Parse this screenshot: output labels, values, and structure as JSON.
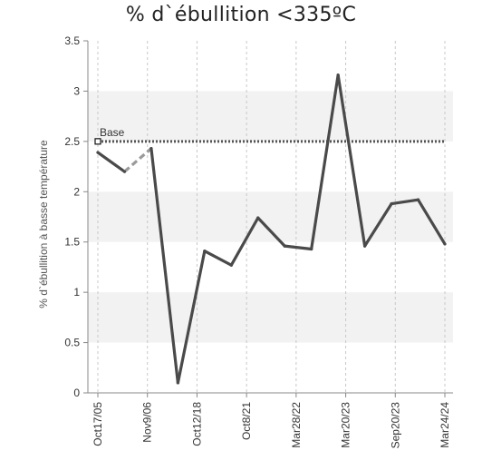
{
  "chart_data": {
    "type": "line",
    "title": "% d`ébullition <335ºC",
    "ylabel": "% d`ébullition à basse température",
    "xlabel": "",
    "ylim": [
      0,
      3.5
    ],
    "yticks": [
      "0",
      "0.5",
      "1",
      "1.5",
      "2",
      "2.5",
      "3",
      "3.5"
    ],
    "x_tick_labels": [
      "Oct17/05",
      "Nov9/06",
      "Oct12/18",
      "Oct8/21",
      "Mar28/22",
      "Mar20/23",
      "Sep20/23",
      "Mar24/24"
    ],
    "grid": "vertical dashed lines, alternating shaded horizontal bands",
    "series": [
      {
        "values": [
          2.39,
          2.2,
          2.43,
          0.1,
          1.41,
          1.27,
          1.74,
          1.46,
          1.43,
          3.16,
          1.46,
          1.88,
          1.92,
          1.48
        ],
        "gap_segments": [
          [
            0,
            2
          ]
        ],
        "color": "#4a4a4a"
      },
      {
        "name": "Base",
        "values": [
          2.5,
          2.5
        ],
        "style": "dotted",
        "color": "#555555"
      }
    ],
    "annotation": "Base"
  }
}
